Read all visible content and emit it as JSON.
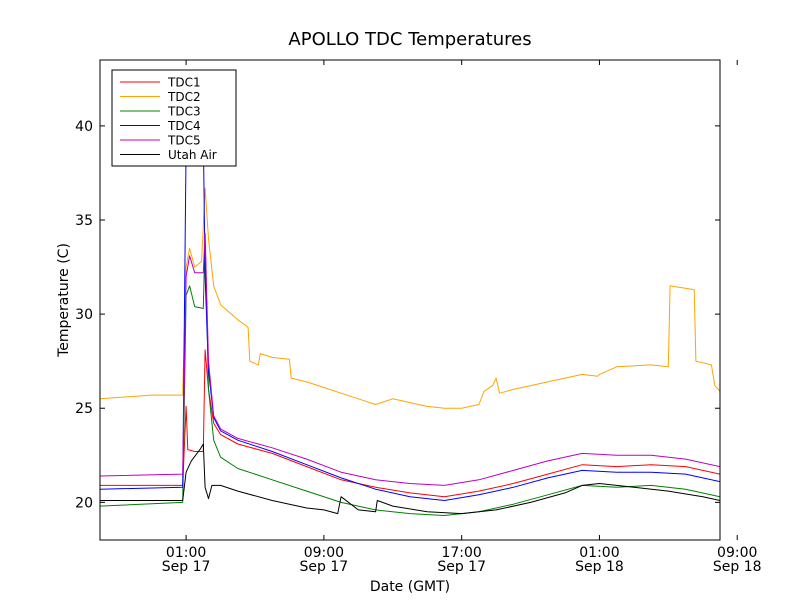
{
  "chart_data": {
    "type": "line",
    "title": "APOLLO TDC Temperatures",
    "xlabel": "Date (GMT)",
    "ylabel": "Temperature (C)",
    "xlim_hours": [
      -4,
      32
    ],
    "ylim": [
      18,
      43.5
    ],
    "x_ticks": [
      {
        "hour": 1,
        "line1": "01:00",
        "line2": "Sep 17"
      },
      {
        "hour": 9,
        "line1": "09:00",
        "line2": "Sep 17"
      },
      {
        "hour": 17,
        "line1": "17:00",
        "line2": "Sep 17"
      },
      {
        "hour": 25,
        "line1": "01:00",
        "line2": "Sep 18"
      },
      {
        "hour": 33,
        "line1": "09:00",
        "line2": "Sep 18"
      }
    ],
    "y_ticks": [
      20,
      25,
      30,
      35,
      40
    ],
    "legend_position": "top-left",
    "series": [
      {
        "name": "TDC1",
        "color": "#ff0000",
        "points": [
          [
            -4,
            20.9
          ],
          [
            0.8,
            20.9
          ],
          [
            1.0,
            25.1
          ],
          [
            1.1,
            22.8
          ],
          [
            1.5,
            22.7
          ],
          [
            2.0,
            22.7
          ],
          [
            2.1,
            28.1
          ],
          [
            2.3,
            26.0
          ],
          [
            2.6,
            24.2
          ],
          [
            3.0,
            23.6
          ],
          [
            4,
            23.1
          ],
          [
            6,
            22.6
          ],
          [
            8,
            21.9
          ],
          [
            10,
            21.2
          ],
          [
            12,
            20.8
          ],
          [
            14,
            20.5
          ],
          [
            16,
            20.3
          ],
          [
            18,
            20.6
          ],
          [
            20,
            21.0
          ],
          [
            22,
            21.5
          ],
          [
            24,
            22.0
          ],
          [
            26,
            21.9
          ],
          [
            28,
            22.0
          ],
          [
            30,
            21.9
          ],
          [
            32,
            21.5
          ]
        ]
      },
      {
        "name": "TDC2",
        "color": "#ffa500",
        "points": [
          [
            -4,
            25.5
          ],
          [
            -1,
            25.7
          ],
          [
            0.8,
            25.7
          ],
          [
            1.0,
            32.5
          ],
          [
            1.2,
            33.5
          ],
          [
            1.5,
            32.5
          ],
          [
            1.9,
            32.8
          ],
          [
            2.1,
            36.7
          ],
          [
            2.3,
            34.0
          ],
          [
            2.6,
            31.5
          ],
          [
            3,
            30.5
          ],
          [
            4,
            29.7
          ],
          [
            4.6,
            29.3
          ],
          [
            4.7,
            27.5
          ],
          [
            5.2,
            27.3
          ],
          [
            5.3,
            27.9
          ],
          [
            6.0,
            27.7
          ],
          [
            7.0,
            27.6
          ],
          [
            7.1,
            26.6
          ],
          [
            8,
            26.4
          ],
          [
            9,
            26.1
          ],
          [
            10,
            25.8
          ],
          [
            11,
            25.5
          ],
          [
            12,
            25.2
          ],
          [
            13,
            25.5
          ],
          [
            14,
            25.3
          ],
          [
            15,
            25.1
          ],
          [
            16,
            25.0
          ],
          [
            17,
            25.0
          ],
          [
            18,
            25.2
          ],
          [
            18.3,
            25.9
          ],
          [
            18.8,
            26.2
          ],
          [
            19.0,
            26.6
          ],
          [
            19.2,
            25.8
          ],
          [
            20,
            26.0
          ],
          [
            22,
            26.4
          ],
          [
            24,
            26.8
          ],
          [
            24.9,
            26.7
          ],
          [
            25.0,
            26.8
          ],
          [
            26,
            27.2
          ],
          [
            28,
            27.3
          ],
          [
            29,
            27.2
          ],
          [
            29.1,
            31.5
          ],
          [
            30.5,
            31.3
          ],
          [
            30.6,
            27.5
          ],
          [
            31.5,
            27.3
          ],
          [
            31.7,
            26.2
          ],
          [
            32,
            25.9
          ]
        ]
      },
      {
        "name": "TDC3",
        "color": "#008000",
        "points": [
          [
            -4,
            19.8
          ],
          [
            0.8,
            20.0
          ],
          [
            1.0,
            31.0
          ],
          [
            1.2,
            31.5
          ],
          [
            1.5,
            30.4
          ],
          [
            2.0,
            30.3
          ],
          [
            2.1,
            34.2
          ],
          [
            2.3,
            26.0
          ],
          [
            2.6,
            23.3
          ],
          [
            3,
            22.4
          ],
          [
            4,
            21.8
          ],
          [
            6,
            21.2
          ],
          [
            8,
            20.6
          ],
          [
            10,
            20.0
          ],
          [
            12,
            19.6
          ],
          [
            14,
            19.4
          ],
          [
            16,
            19.3
          ],
          [
            18,
            19.5
          ],
          [
            20,
            19.9
          ],
          [
            22,
            20.4
          ],
          [
            24,
            20.9
          ],
          [
            26,
            20.8
          ],
          [
            28,
            20.9
          ],
          [
            30,
            20.7
          ],
          [
            32,
            20.3
          ]
        ]
      },
      {
        "name": "TDC4",
        "color": "#0000ff",
        "points": [
          [
            -4,
            20.7
          ],
          [
            0.8,
            20.8
          ],
          [
            1.0,
            39.0
          ],
          [
            1.3,
            40.5
          ],
          [
            1.7,
            40.0
          ],
          [
            2.0,
            39.5
          ],
          [
            2.1,
            32.0
          ],
          [
            2.3,
            27.0
          ],
          [
            2.6,
            24.5
          ],
          [
            3,
            23.8
          ],
          [
            4,
            23.3
          ],
          [
            6,
            22.7
          ],
          [
            8,
            22.0
          ],
          [
            10,
            21.3
          ],
          [
            12,
            20.7
          ],
          [
            14,
            20.3
          ],
          [
            16,
            20.1
          ],
          [
            18,
            20.4
          ],
          [
            20,
            20.8
          ],
          [
            22,
            21.3
          ],
          [
            24,
            21.7
          ],
          [
            26,
            21.6
          ],
          [
            28,
            21.6
          ],
          [
            30,
            21.5
          ],
          [
            32,
            21.1
          ]
        ]
      },
      {
        "name": "TDC5",
        "color": "#bf00bf",
        "points": [
          [
            -4,
            21.4
          ],
          [
            0.8,
            21.5
          ],
          [
            1.0,
            32.0
          ],
          [
            1.2,
            33.1
          ],
          [
            1.5,
            32.2
          ],
          [
            2.0,
            32.2
          ],
          [
            2.1,
            34.3
          ],
          [
            2.3,
            27.5
          ],
          [
            2.6,
            24.6
          ],
          [
            3,
            23.9
          ],
          [
            4,
            23.4
          ],
          [
            6,
            22.9
          ],
          [
            8,
            22.3
          ],
          [
            10,
            21.6
          ],
          [
            12,
            21.2
          ],
          [
            14,
            21.0
          ],
          [
            16,
            20.9
          ],
          [
            18,
            21.2
          ],
          [
            20,
            21.7
          ],
          [
            22,
            22.2
          ],
          [
            24,
            22.6
          ],
          [
            26,
            22.5
          ],
          [
            28,
            22.5
          ],
          [
            30,
            22.3
          ],
          [
            32,
            21.9
          ]
        ]
      },
      {
        "name": "Utah Air",
        "color": "#000000",
        "points": [
          [
            -4,
            20.1
          ],
          [
            0.8,
            20.1
          ],
          [
            1.0,
            21.6
          ],
          [
            1.3,
            22.2
          ],
          [
            1.8,
            22.8
          ],
          [
            2.0,
            23.1
          ],
          [
            2.1,
            20.8
          ],
          [
            2.3,
            20.2
          ],
          [
            2.5,
            20.9
          ],
          [
            3,
            20.9
          ],
          [
            4,
            20.6
          ],
          [
            6,
            20.1
          ],
          [
            8,
            19.7
          ],
          [
            9,
            19.6
          ],
          [
            9.8,
            19.4
          ],
          [
            10.0,
            20.3
          ],
          [
            11,
            19.6
          ],
          [
            12,
            19.5
          ],
          [
            12.1,
            20.1
          ],
          [
            13,
            19.8
          ],
          [
            15,
            19.5
          ],
          [
            17,
            19.4
          ],
          [
            19,
            19.6
          ],
          [
            21,
            20.0
          ],
          [
            23,
            20.5
          ],
          [
            24,
            20.9
          ],
          [
            25,
            21.0
          ],
          [
            27,
            20.8
          ],
          [
            29,
            20.6
          ],
          [
            31,
            20.3
          ],
          [
            32,
            20.1
          ]
        ]
      }
    ]
  }
}
